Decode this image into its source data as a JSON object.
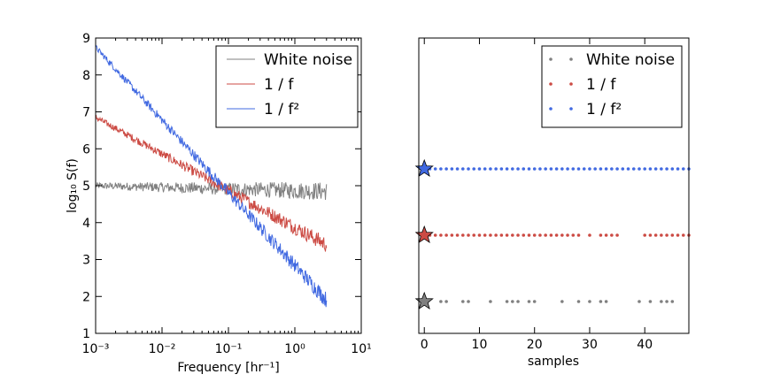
{
  "chart_data": [
    {
      "type": "line",
      "xscale": "log",
      "xlim": [
        0.001,
        10
      ],
      "ylim": [
        1,
        9
      ],
      "xlabel": "Frequency [hr⁻¹]",
      "ylabel": "log₁₀ S(f)",
      "x_ticks": [
        "10⁻³",
        "10⁻²",
        "10⁻¹",
        "10⁰",
        "10¹"
      ],
      "y_ticks": [
        1,
        2,
        3,
        4,
        5,
        6,
        7,
        8,
        9
      ],
      "legend_position": "top-right",
      "series": [
        {
          "name": "White noise",
          "color": "#808080",
          "slope": 0,
          "start_level": 5.0,
          "end_level": 4.85,
          "x_range": [
            0.001,
            3
          ],
          "noise": 0.25
        },
        {
          "name": "1 / f",
          "color": "#cc4b44",
          "slope": -1,
          "start_level": 6.85,
          "end_level": 3.4,
          "x_range": [
            0.001,
            3
          ],
          "noise": 0.22
        },
        {
          "name": "1 / f²",
          "color": "#4169e1",
          "slope": -2,
          "start_level": 8.75,
          "end_level": 1.9,
          "x_range": [
            0.001,
            3
          ],
          "noise": 0.22
        }
      ]
    },
    {
      "type": "scatter",
      "xlim": [
        -1,
        48
      ],
      "x_ticks": [
        0,
        10,
        20,
        30,
        40
      ],
      "xlabel": "samples",
      "legend_position": "top-right",
      "series": [
        {
          "name": "White noise",
          "color": "#808080",
          "row": 0,
          "points": [
            3,
            4,
            7,
            8,
            12,
            15,
            16,
            17,
            19,
            20,
            25,
            28,
            30,
            32,
            33,
            39,
            41,
            43,
            44,
            45
          ]
        },
        {
          "name": "1 / f",
          "color": "#cc4b44",
          "row": 1,
          "points": [
            1,
            2,
            3,
            4,
            5,
            6,
            7,
            8,
            9,
            10,
            11,
            12,
            13,
            14,
            15,
            16,
            17,
            18,
            19,
            20,
            21,
            22,
            23,
            24,
            25,
            26,
            27,
            28,
            30,
            32,
            33,
            34,
            35,
            40,
            41,
            42,
            43,
            44,
            45,
            46,
            47,
            48
          ]
        },
        {
          "name": "1 / f²",
          "color": "#4169e1",
          "row": 2,
          "points": [
            1,
            2,
            3,
            4,
            5,
            6,
            7,
            8,
            9,
            10,
            11,
            12,
            13,
            14,
            15,
            16,
            17,
            18,
            19,
            20,
            21,
            22,
            23,
            24,
            25,
            26,
            27,
            28,
            29,
            30,
            31,
            32,
            33,
            34,
            35,
            36,
            37,
            38,
            39,
            40,
            41,
            42,
            43,
            44,
            45,
            46,
            47,
            48
          ]
        }
      ],
      "star_markers": [
        {
          "color": "#808080",
          "row": 0,
          "x": 0
        },
        {
          "color": "#cc4b44",
          "row": 1,
          "x": 0
        },
        {
          "color": "#4169e1",
          "row": 2,
          "x": 0
        }
      ]
    }
  ]
}
